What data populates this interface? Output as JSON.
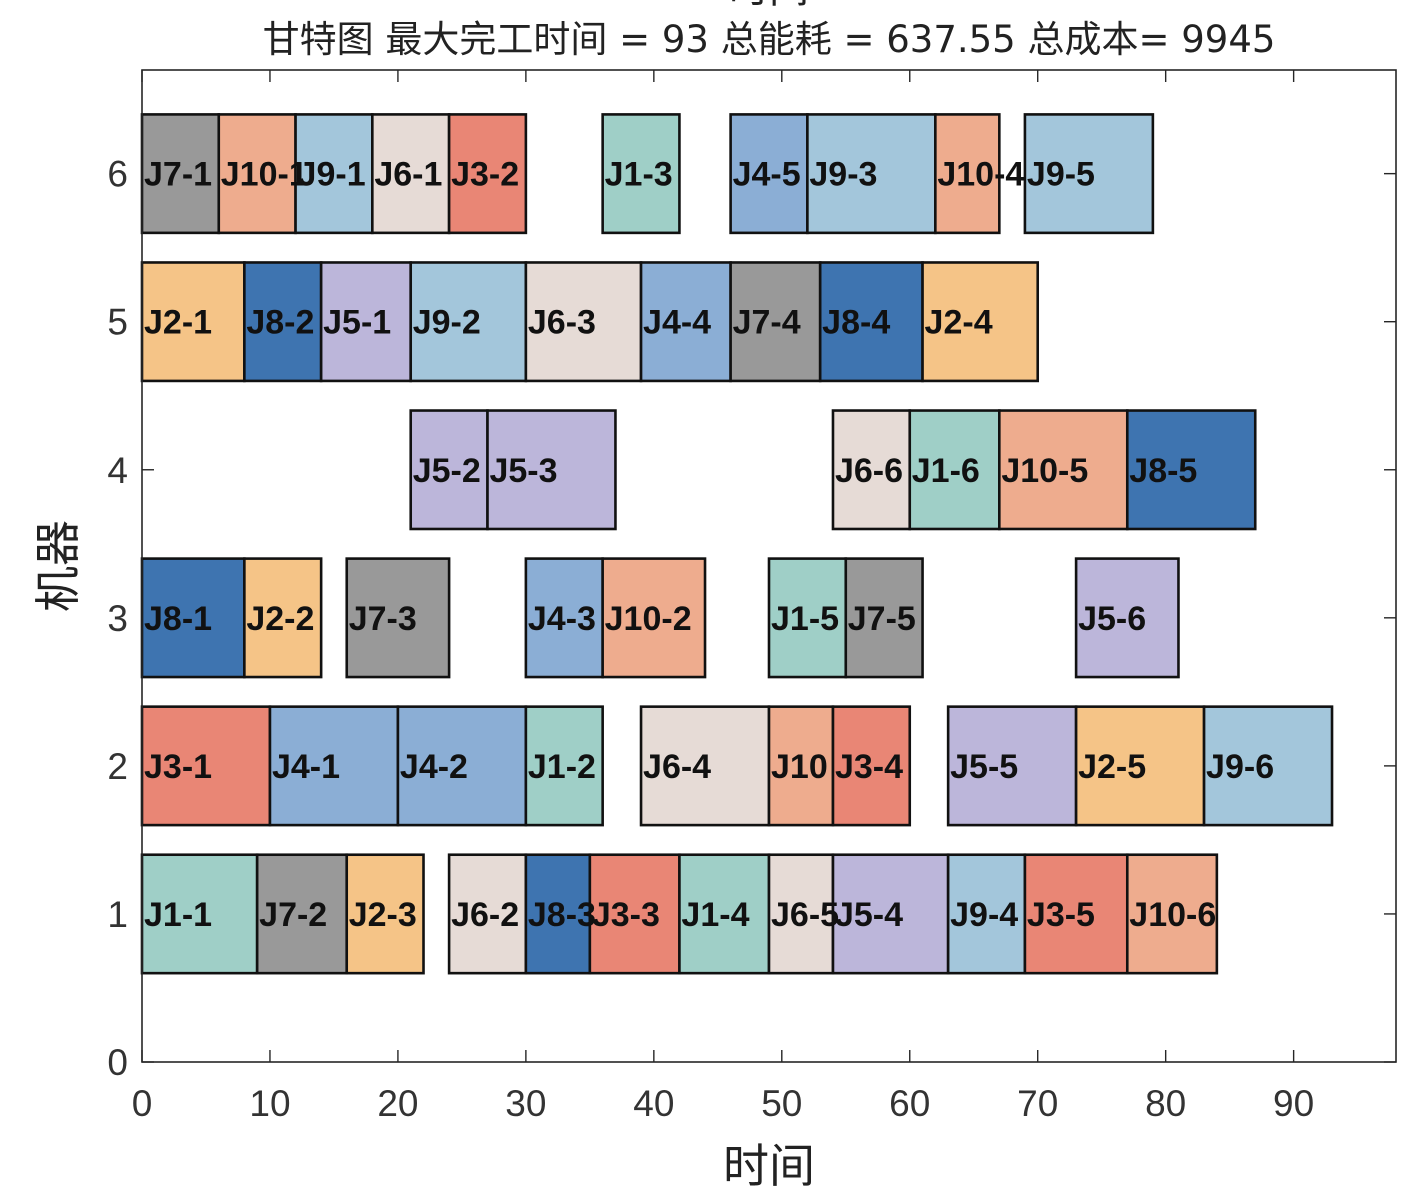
{
  "chart_data": {
    "type": "gantt",
    "title_top": "时间",
    "title": "甘特图 最大完工时间 = 93 总能耗 = 637.55 总成本= 9945",
    "xlabel": "时间",
    "ylabel": "机器",
    "xlim": [
      0,
      98
    ],
    "ylim": [
      0,
      6.7
    ],
    "xticks": [
      0,
      10,
      20,
      30,
      40,
      50,
      60,
      70,
      80,
      90
    ],
    "yticks": [
      0,
      1,
      2,
      3,
      4,
      5,
      6
    ],
    "colors": {
      "J1": "#9fcfc7",
      "J2": "#f5c487",
      "J3": "#e98675",
      "J4": "#8baed5",
      "J5": "#bcb6da",
      "J6": "#e6dbd6",
      "J7": "#999999",
      "J8": "#3e74b0",
      "J9": "#a3c6db",
      "J10": "#eeac8e"
    },
    "tasks": [
      {
        "machine": 6,
        "job": "J7",
        "label": "J7-1",
        "start": 0,
        "end": 6
      },
      {
        "machine": 6,
        "job": "J10",
        "label": "J10-1",
        "start": 6,
        "end": 12
      },
      {
        "machine": 6,
        "job": "J9",
        "label": "J9-1",
        "start": 12,
        "end": 18
      },
      {
        "machine": 6,
        "job": "J6",
        "label": "J6-1",
        "start": 18,
        "end": 24
      },
      {
        "machine": 6,
        "job": "J3",
        "label": "J3-2",
        "start": 24,
        "end": 30
      },
      {
        "machine": 6,
        "job": "J1",
        "label": "J1-3",
        "start": 36,
        "end": 42
      },
      {
        "machine": 6,
        "job": "J4",
        "label": "J4-5",
        "start": 46,
        "end": 52
      },
      {
        "machine": 6,
        "job": "J9",
        "label": "J9-3",
        "start": 52,
        "end": 62
      },
      {
        "machine": 6,
        "job": "J10",
        "label": "J10-4",
        "start": 62,
        "end": 67
      },
      {
        "machine": 6,
        "job": "J9",
        "label": "J9-5",
        "start": 69,
        "end": 79
      },
      {
        "machine": 5,
        "job": "J2",
        "label": "J2-1",
        "start": 0,
        "end": 8
      },
      {
        "machine": 5,
        "job": "J8",
        "label": "J8-2",
        "start": 8,
        "end": 14
      },
      {
        "machine": 5,
        "job": "J5",
        "label": "J5-1",
        "start": 14,
        "end": 21
      },
      {
        "machine": 5,
        "job": "J9",
        "label": "J9-2",
        "start": 21,
        "end": 30
      },
      {
        "machine": 5,
        "job": "J6",
        "label": "J6-3",
        "start": 30,
        "end": 39
      },
      {
        "machine": 5,
        "job": "J4",
        "label": "J4-4",
        "start": 39,
        "end": 46
      },
      {
        "machine": 5,
        "job": "J7",
        "label": "J7-4",
        "start": 46,
        "end": 53
      },
      {
        "machine": 5,
        "job": "J8",
        "label": "J8-4",
        "start": 53,
        "end": 61
      },
      {
        "machine": 5,
        "job": "J2",
        "label": "J2-4",
        "start": 61,
        "end": 70
      },
      {
        "machine": 4,
        "job": "J5",
        "label": "J5-2",
        "start": 21,
        "end": 27
      },
      {
        "machine": 4,
        "job": "J5",
        "label": "J5-3",
        "start": 27,
        "end": 37
      },
      {
        "machine": 4,
        "job": "J6",
        "label": "J6-6",
        "start": 54,
        "end": 60
      },
      {
        "machine": 4,
        "job": "J1",
        "label": "J1-6",
        "start": 60,
        "end": 67
      },
      {
        "machine": 4,
        "job": "J10",
        "label": "J10-5",
        "start": 67,
        "end": 77
      },
      {
        "machine": 4,
        "job": "J8",
        "label": "J8-5",
        "start": 77,
        "end": 87
      },
      {
        "machine": 3,
        "job": "J8",
        "label": "J8-1",
        "start": 0,
        "end": 8
      },
      {
        "machine": 3,
        "job": "J2",
        "label": "J2-2",
        "start": 8,
        "end": 14
      },
      {
        "machine": 3,
        "job": "J7",
        "label": "J7-3",
        "start": 16,
        "end": 24
      },
      {
        "machine": 3,
        "job": "J4",
        "label": "J4-3",
        "start": 30,
        "end": 36
      },
      {
        "machine": 3,
        "job": "J10",
        "label": "J10-2",
        "start": 36,
        "end": 44
      },
      {
        "machine": 3,
        "job": "J1",
        "label": "J1-5",
        "start": 49,
        "end": 55
      },
      {
        "machine": 3,
        "job": "J7",
        "label": "J7-5",
        "start": 55,
        "end": 61
      },
      {
        "machine": 3,
        "job": "J5",
        "label": "J5-6",
        "start": 73,
        "end": 81
      },
      {
        "machine": 2,
        "job": "J3",
        "label": "J3-1",
        "start": 0,
        "end": 10
      },
      {
        "machine": 2,
        "job": "J4",
        "label": "J4-1",
        "start": 10,
        "end": 20
      },
      {
        "machine": 2,
        "job": "J4",
        "label": "J4-2",
        "start": 20,
        "end": 30
      },
      {
        "machine": 2,
        "job": "J1",
        "label": "J1-2",
        "start": 30,
        "end": 36
      },
      {
        "machine": 2,
        "job": "J6",
        "label": "J6-4",
        "start": 39,
        "end": 49
      },
      {
        "machine": 2,
        "job": "J10",
        "label": "J10",
        "start": 49,
        "end": 54
      },
      {
        "machine": 2,
        "job": "J3",
        "label": "J3-4",
        "start": 54,
        "end": 60
      },
      {
        "machine": 2,
        "job": "J5",
        "label": "J5-5",
        "start": 63,
        "end": 73
      },
      {
        "machine": 2,
        "job": "J2",
        "label": "J2-5",
        "start": 73,
        "end": 83
      },
      {
        "machine": 2,
        "job": "J9",
        "label": "J9-6",
        "start": 83,
        "end": 93
      },
      {
        "machine": 1,
        "job": "J1",
        "label": "J1-1",
        "start": 0,
        "end": 9
      },
      {
        "machine": 1,
        "job": "J7",
        "label": "J7-2",
        "start": 9,
        "end": 16
      },
      {
        "machine": 1,
        "job": "J2",
        "label": "J2-3",
        "start": 16,
        "end": 22
      },
      {
        "machine": 1,
        "job": "J6",
        "label": "J6-2",
        "start": 24,
        "end": 30
      },
      {
        "machine": 1,
        "job": "J8",
        "label": "J8-3",
        "start": 30,
        "end": 35
      },
      {
        "machine": 1,
        "job": "J3",
        "label": "J3-3",
        "start": 35,
        "end": 42
      },
      {
        "machine": 1,
        "job": "J1",
        "label": "J1-4",
        "start": 42,
        "end": 49
      },
      {
        "machine": 1,
        "job": "J6",
        "label": "J6-5",
        "start": 49,
        "end": 54
      },
      {
        "machine": 1,
        "job": "J5",
        "label": "J5-4",
        "start": 54,
        "end": 63
      },
      {
        "machine": 1,
        "job": "J9",
        "label": "J9-4",
        "start": 63,
        "end": 69
      },
      {
        "machine": 1,
        "job": "J3",
        "label": "J3-5",
        "start": 69,
        "end": 77
      },
      {
        "machine": 1,
        "job": "J10",
        "label": "J10-6",
        "start": 77,
        "end": 84
      }
    ]
  }
}
